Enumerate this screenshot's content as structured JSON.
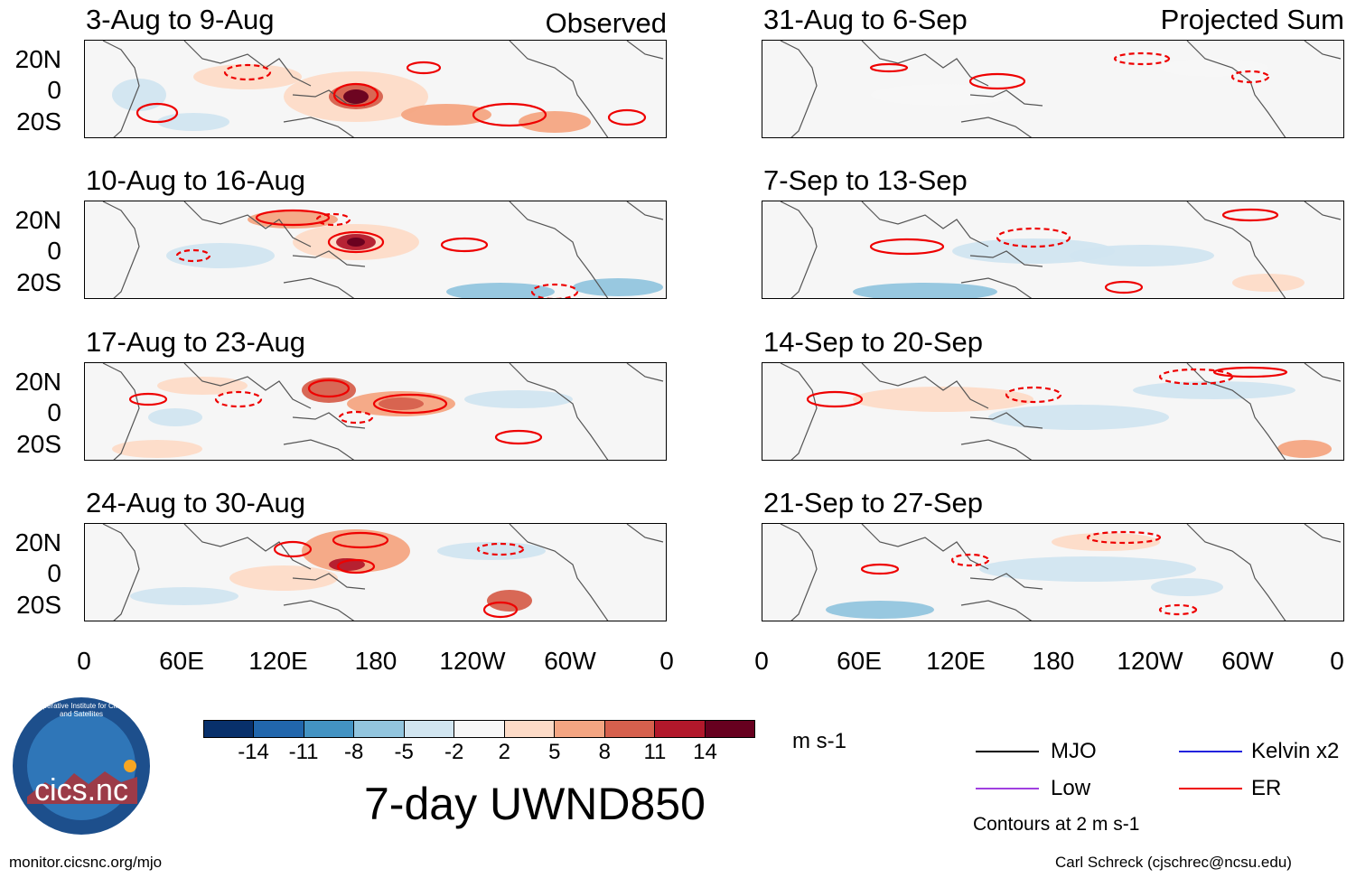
{
  "chart_data": {
    "type": "heatmap",
    "title": "7-day UWND850",
    "units": "m s-1",
    "contour_note": "Contours at 2 m s-1",
    "observed_label": "Observed",
    "projected_label": "Projected Sum",
    "x_ticks": [
      "0",
      "60E",
      "120E",
      "180",
      "120W",
      "60W",
      "0"
    ],
    "y_ticks": [
      "20N",
      "0",
      "20S"
    ],
    "xlim": [
      0,
      360
    ],
    "ylim": [
      -30,
      30
    ],
    "colorbar": {
      "ticks": [
        "-14",
        "-11",
        "-8",
        "-5",
        "-2",
        "2",
        "5",
        "8",
        "11",
        "14"
      ],
      "colors": [
        "#08306b",
        "#2166ac",
        "#4393c3",
        "#92c5de",
        "#d1e5f0",
        "#f7f7f7",
        "#fddbc7",
        "#f4a582",
        "#d6604d",
        "#b2182b",
        "#67001f"
      ]
    },
    "panels": [
      {
        "title": "3-Aug to 9-Aug",
        "kind": "observed"
      },
      {
        "title": "10-Aug to 16-Aug",
        "kind": "observed"
      },
      {
        "title": "17-Aug to 23-Aug",
        "kind": "observed"
      },
      {
        "title": "24-Aug to 30-Aug",
        "kind": "observed"
      },
      {
        "title": "31-Aug to 6-Sep",
        "kind": "projected"
      },
      {
        "title": "7-Sep to 13-Sep",
        "kind": "projected"
      },
      {
        "title": "14-Sep to 20-Sep",
        "kind": "projected"
      },
      {
        "title": "21-Sep to 27-Sep",
        "kind": "projected"
      }
    ],
    "legend": [
      {
        "label": "MJO",
        "color": "#000000"
      },
      {
        "label": "Kelvin x2",
        "color": "#2222dd"
      },
      {
        "label": "Low",
        "color": "#a040e0"
      },
      {
        "label": "ER",
        "color": "#ee0000"
      }
    ]
  },
  "footer": {
    "left": "monitor.cicsnc.org/mjo",
    "right": "Carl Schreck (cjschrec@ncsu.edu)"
  },
  "logo": {
    "text": "cics.nc",
    "ring_text": "Cooperative Institute for Climate and Satellites"
  }
}
